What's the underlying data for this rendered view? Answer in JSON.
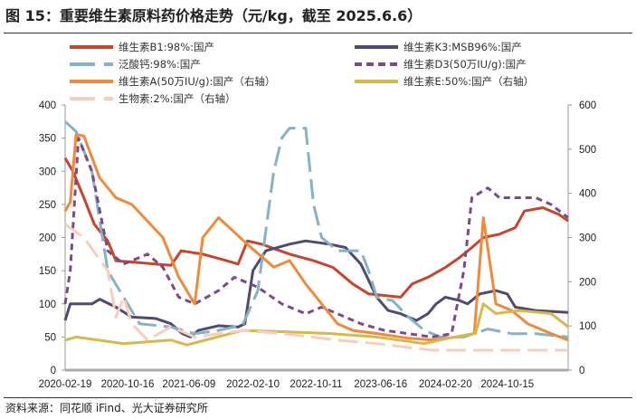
{
  "title": "图 15：重要维生素原料药价格走势（元/kg，截至 2025.6.6）",
  "source": "资料来源：同花顺 iFind、光大证券研究所",
  "chart_data": {
    "type": "line",
    "title": "图 15：重要维生素原料药价格走势（元/kg，截至 2025.6.6）",
    "xlabel": "",
    "ylabel": "",
    "x_ticks": [
      "2020-02-19",
      "2020-10-16",
      "2021-06-09",
      "2022-02-10",
      "2022-10-11",
      "2023-06-16",
      "2024-02-20",
      "2024-10-15"
    ],
    "x_range": [
      "2020-02-19",
      "2025-06-06"
    ],
    "ylim_left": [
      0,
      400
    ],
    "yticks_left": [
      0,
      50,
      100,
      150,
      200,
      250,
      300,
      350,
      400
    ],
    "ylim_right": [
      0,
      600
    ],
    "yticks_right": [
      0,
      100,
      200,
      300,
      400,
      500,
      600
    ],
    "grid": false,
    "legend_position": "top",
    "series": [
      {
        "name": "维生素B1:98%:国产",
        "axis": "left",
        "color": "#c8442a",
        "dash": false,
        "points": [
          [
            "2020-02-19",
            320
          ],
          [
            "2020-03-20",
            300
          ],
          [
            "2020-05-01",
            260
          ],
          [
            "2020-06-10",
            220
          ],
          [
            "2020-08-01",
            195
          ],
          [
            "2020-09-01",
            165
          ],
          [
            "2020-12-01",
            162
          ],
          [
            "2021-04-01",
            158
          ],
          [
            "2021-05-10",
            180
          ],
          [
            "2021-08-01",
            175
          ],
          [
            "2021-11-01",
            165
          ],
          [
            "2021-12-15",
            160
          ],
          [
            "2022-01-20",
            195
          ],
          [
            "2022-03-15",
            190
          ],
          [
            "2022-07-01",
            175
          ],
          [
            "2022-10-01",
            165
          ],
          [
            "2022-12-15",
            155
          ],
          [
            "2023-03-01",
            130
          ],
          [
            "2023-05-01",
            115
          ],
          [
            "2023-09-01",
            110
          ],
          [
            "2023-10-15",
            130
          ],
          [
            "2023-12-15",
            140
          ],
          [
            "2024-02-20",
            155
          ],
          [
            "2024-04-15",
            170
          ],
          [
            "2024-06-01",
            185
          ],
          [
            "2024-07-15",
            200
          ],
          [
            "2024-09-15",
            205
          ],
          [
            "2024-11-15",
            215
          ],
          [
            "2024-12-20",
            240
          ],
          [
            "2025-03-01",
            245
          ],
          [
            "2025-05-01",
            235
          ],
          [
            "2025-06-06",
            225
          ]
        ]
      },
      {
        "name": "维生素K3:MSB96%:国产",
        "axis": "left",
        "color": "#4e4a72",
        "dash": false,
        "points": [
          [
            "2020-02-19",
            75
          ],
          [
            "2020-03-10",
            100
          ],
          [
            "2020-06-01",
            100
          ],
          [
            "2020-07-01",
            107
          ],
          [
            "2020-09-01",
            95
          ],
          [
            "2020-11-01",
            80
          ],
          [
            "2021-02-01",
            78
          ],
          [
            "2021-04-01",
            70
          ],
          [
            "2021-05-15",
            55
          ],
          [
            "2021-06-15",
            50
          ],
          [
            "2021-07-15",
            60
          ],
          [
            "2021-10-01",
            67
          ],
          [
            "2021-12-15",
            65
          ],
          [
            "2022-01-10",
            70
          ],
          [
            "2022-02-10",
            150
          ],
          [
            "2022-04-01",
            180
          ],
          [
            "2022-07-01",
            190
          ],
          [
            "2022-09-01",
            195
          ],
          [
            "2022-12-01",
            190
          ],
          [
            "2023-02-01",
            185
          ],
          [
            "2023-04-01",
            160
          ],
          [
            "2023-06-01",
            110
          ],
          [
            "2023-07-15",
            90
          ],
          [
            "2023-09-01",
            85
          ],
          [
            "2023-11-01",
            75
          ],
          [
            "2023-12-15",
            85
          ],
          [
            "2024-01-15",
            100
          ],
          [
            "2024-02-20",
            110
          ],
          [
            "2024-04-15",
            105
          ],
          [
            "2024-05-15",
            100
          ],
          [
            "2024-07-01",
            115
          ],
          [
            "2024-09-01",
            120
          ],
          [
            "2024-10-15",
            115
          ],
          [
            "2024-11-15",
            95
          ],
          [
            "2025-02-01",
            90
          ],
          [
            "2025-06-06",
            87
          ]
        ]
      },
      {
        "name": "泛酸钙:98%:国产",
        "axis": "left",
        "color": "#86b2c8",
        "dash": true,
        "points": [
          [
            "2020-02-19",
            375
          ],
          [
            "2020-04-01",
            360
          ],
          [
            "2020-06-01",
            300
          ],
          [
            "2020-08-01",
            150
          ],
          [
            "2020-10-01",
            110
          ],
          [
            "2020-12-01",
            70
          ],
          [
            "2021-04-01",
            65
          ],
          [
            "2021-07-01",
            55
          ],
          [
            "2021-10-01",
            60
          ],
          [
            "2022-01-01",
            68
          ],
          [
            "2022-03-01",
            120
          ],
          [
            "2022-05-01",
            300
          ],
          [
            "2022-06-01",
            350
          ],
          [
            "2022-07-01",
            365
          ],
          [
            "2022-09-01",
            365
          ],
          [
            "2022-10-01",
            250
          ],
          [
            "2022-11-01",
            200
          ],
          [
            "2023-01-01",
            180
          ],
          [
            "2023-04-01",
            180
          ],
          [
            "2023-05-01",
            150
          ],
          [
            "2023-06-01",
            110
          ],
          [
            "2023-08-01",
            105
          ],
          [
            "2023-10-01",
            80
          ],
          [
            "2023-12-01",
            60
          ],
          [
            "2024-02-01",
            50
          ],
          [
            "2024-05-01",
            50
          ],
          [
            "2024-08-01",
            62
          ],
          [
            "2024-11-01",
            55
          ],
          [
            "2025-02-01",
            55
          ],
          [
            "2025-06-06",
            50
          ]
        ]
      },
      {
        "name": "维生素D3(50万IU/g):国产",
        "axis": "left",
        "color": "#7b4a8a",
        "dash": true,
        "points": [
          [
            "2020-02-19",
            100
          ],
          [
            "2020-03-10",
            150
          ],
          [
            "2020-04-10",
            350
          ],
          [
            "2020-06-01",
            300
          ],
          [
            "2020-08-01",
            180
          ],
          [
            "2020-10-01",
            160
          ],
          [
            "2021-01-01",
            175
          ],
          [
            "2021-03-01",
            155
          ],
          [
            "2021-05-01",
            110
          ],
          [
            "2021-07-01",
            100
          ],
          [
            "2021-10-01",
            120
          ],
          [
            "2021-12-01",
            140
          ],
          [
            "2022-03-01",
            125
          ],
          [
            "2022-06-01",
            100
          ],
          [
            "2022-09-01",
            85
          ],
          [
            "2022-11-01",
            95
          ],
          [
            "2023-01-01",
            85
          ],
          [
            "2023-04-01",
            70
          ],
          [
            "2023-07-01",
            60
          ],
          [
            "2023-10-01",
            55
          ],
          [
            "2024-01-01",
            50
          ],
          [
            "2024-03-15",
            55
          ],
          [
            "2024-05-01",
            150
          ],
          [
            "2024-06-01",
            260
          ],
          [
            "2024-08-01",
            275
          ],
          [
            "2024-09-15",
            260
          ],
          [
            "2025-02-01",
            260
          ],
          [
            "2025-04-01",
            250
          ],
          [
            "2025-06-06",
            230
          ]
        ]
      },
      {
        "name": "维生素A(50万IU/g):国产（右轴）",
        "axis": "right",
        "color": "#f08a3a",
        "dash": false,
        "points": [
          [
            "2020-02-19",
            360
          ],
          [
            "2020-03-10",
            380
          ],
          [
            "2020-04-01",
            533
          ],
          [
            "2020-05-01",
            530
          ],
          [
            "2020-07-01",
            435
          ],
          [
            "2020-09-01",
            390
          ],
          [
            "2020-11-01",
            375
          ],
          [
            "2021-03-01",
            300
          ],
          [
            "2021-05-01",
            210
          ],
          [
            "2021-07-01",
            150
          ],
          [
            "2021-08-01",
            300
          ],
          [
            "2021-10-01",
            345
          ],
          [
            "2022-02-01",
            278
          ],
          [
            "2022-05-01",
            233
          ],
          [
            "2022-07-01",
            248
          ],
          [
            "2022-09-01",
            195
          ],
          [
            "2022-11-01",
            150
          ],
          [
            "2023-01-01",
            105
          ],
          [
            "2023-03-01",
            90
          ],
          [
            "2023-06-01",
            83
          ],
          [
            "2023-10-01",
            72
          ],
          [
            "2024-01-01",
            68
          ],
          [
            "2024-04-01",
            75
          ],
          [
            "2024-06-10",
            83
          ],
          [
            "2024-07-15",
            345
          ],
          [
            "2024-09-01",
            150
          ],
          [
            "2024-11-01",
            135
          ],
          [
            "2025-01-01",
            105
          ],
          [
            "2025-04-01",
            83
          ],
          [
            "2025-06-06",
            68
          ]
        ]
      },
      {
        "name": "维生素E:50%:国产（右轴）",
        "axis": "right",
        "color": "#d9b84a",
        "dash": false,
        "points": [
          [
            "2020-02-19",
            68
          ],
          [
            "2020-04-01",
            75
          ],
          [
            "2020-10-01",
            60
          ],
          [
            "2021-04-01",
            68
          ],
          [
            "2021-06-01",
            57
          ],
          [
            "2022-01-01",
            90
          ],
          [
            "2022-06-01",
            87
          ],
          [
            "2022-12-01",
            83
          ],
          [
            "2023-06-01",
            75
          ],
          [
            "2023-12-01",
            60
          ],
          [
            "2024-03-01",
            72
          ],
          [
            "2024-06-15",
            83
          ],
          [
            "2024-07-15",
            150
          ],
          [
            "2024-09-01",
            128
          ],
          [
            "2024-12-01",
            135
          ],
          [
            "2025-04-01",
            128
          ],
          [
            "2025-06-06",
            98
          ]
        ]
      },
      {
        "name": "生物素:2%:国产（右轴）",
        "axis": "right",
        "color": "#f9cdbd",
        "dash": true,
        "points": [
          [
            "2020-02-19",
            330
          ],
          [
            "2020-05-01",
            300
          ],
          [
            "2020-08-01",
            225
          ],
          [
            "2020-09-01",
            120
          ],
          [
            "2020-10-01",
            165
          ],
          [
            "2020-11-01",
            105
          ],
          [
            "2021-01-01",
            68
          ],
          [
            "2021-04-01",
            98
          ],
          [
            "2021-07-01",
            75
          ],
          [
            "2022-01-01",
            90
          ],
          [
            "2022-06-01",
            83
          ],
          [
            "2023-01-01",
            68
          ],
          [
            "2023-06-01",
            60
          ],
          [
            "2024-01-01",
            45
          ],
          [
            "2025-06-06",
            45
          ]
        ]
      }
    ]
  }
}
